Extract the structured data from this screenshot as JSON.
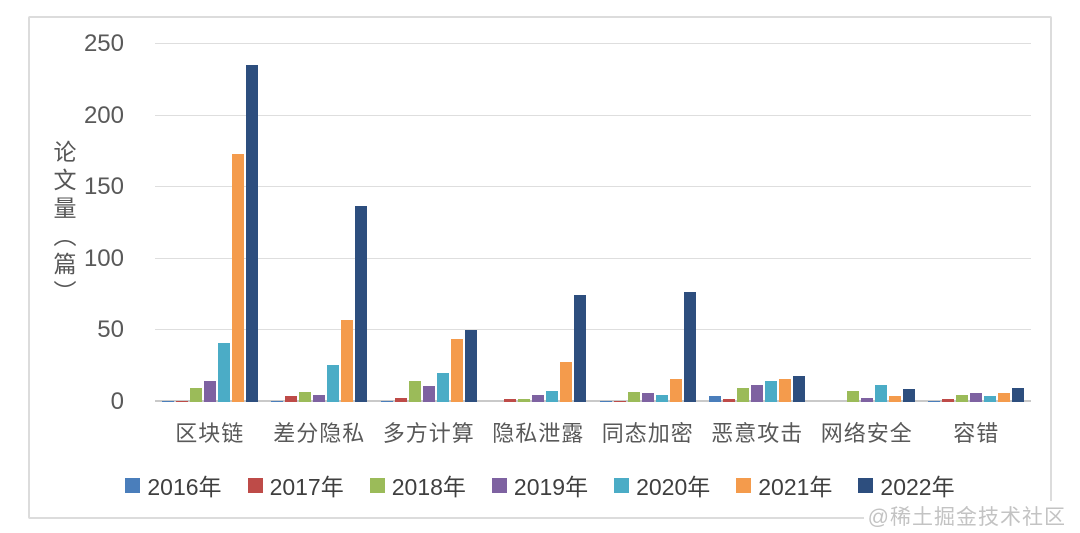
{
  "watermark": "@稀土掘金技术社区",
  "chart_data": {
    "type": "bar",
    "title": "",
    "xlabel": "",
    "ylabel": "论文量（篇）",
    "ylim": [
      0,
      250
    ],
    "yticks": [
      0,
      50,
      100,
      150,
      200,
      250
    ],
    "grid": true,
    "legend_position": "bottom",
    "categories": [
      "区块链",
      "差分隐私",
      "多方计算",
      "隐私泄露",
      "同态加密",
      "恶意攻击",
      "网络安全",
      "容错"
    ],
    "series": [
      {
        "name": "2016年",
        "color": "#4A7EBB",
        "values": [
          1,
          1,
          1,
          0,
          1,
          4,
          0,
          1
        ]
      },
      {
        "name": "2017年",
        "color": "#BE4B48",
        "values": [
          1,
          4,
          3,
          2,
          1,
          2,
          0,
          2
        ]
      },
      {
        "name": "2018年",
        "color": "#9BBB59",
        "values": [
          10,
          7,
          15,
          2,
          7,
          10,
          8,
          5
        ]
      },
      {
        "name": "2019年",
        "color": "#7E62A1",
        "values": [
          15,
          5,
          11,
          5,
          6,
          12,
          3,
          6
        ]
      },
      {
        "name": "2020年",
        "color": "#4BACC6",
        "values": [
          41,
          26,
          20,
          8,
          5,
          15,
          12,
          4
        ]
      },
      {
        "name": "2021年",
        "color": "#F49B4C",
        "values": [
          173,
          57,
          44,
          28,
          16,
          16,
          4,
          6
        ]
      },
      {
        "name": "2022年",
        "color": "#2D4E7E",
        "values": [
          235,
          137,
          50,
          75,
          77,
          18,
          9,
          10
        ]
      }
    ]
  }
}
